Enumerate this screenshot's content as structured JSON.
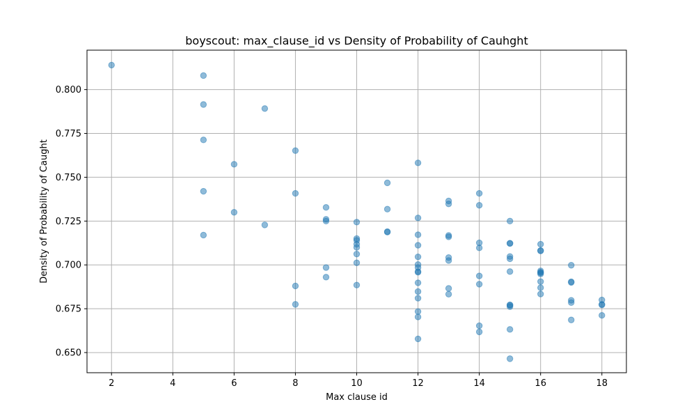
{
  "chart_data": {
    "type": "scatter",
    "title": "boyscout: max_clause_id vs Density of Probability of Cauhght",
    "xlabel": "Max clause id",
    "ylabel": "Density of Probability of Caught",
    "xlim": [
      1.2,
      18.8
    ],
    "ylim": [
      0.6385,
      0.8225
    ],
    "xticks": [
      2,
      4,
      6,
      8,
      10,
      12,
      14,
      16,
      18
    ],
    "xtick_labels": [
      "2",
      "4",
      "6",
      "8",
      "10",
      "12",
      "14",
      "16",
      "18"
    ],
    "yticks": [
      0.65,
      0.675,
      0.7,
      0.725,
      0.75,
      0.775,
      0.8
    ],
    "ytick_labels": [
      "0.650",
      "0.675",
      "0.700",
      "0.725",
      "0.750",
      "0.775",
      "0.800"
    ],
    "grid": true,
    "point_color": "#1f77b4",
    "point_alpha": 0.5,
    "points": [
      [
        2,
        0.814
      ],
      [
        5,
        0.808
      ],
      [
        5,
        0.7915
      ],
      [
        5,
        0.7713
      ],
      [
        5,
        0.742
      ],
      [
        5,
        0.717
      ],
      [
        6,
        0.7574
      ],
      [
        6,
        0.73
      ],
      [
        7,
        0.7892
      ],
      [
        7,
        0.7228
      ],
      [
        8,
        0.7652
      ],
      [
        8,
        0.7408
      ],
      [
        8,
        0.688
      ],
      [
        8,
        0.6775
      ],
      [
        9,
        0.7328
      ],
      [
        9,
        0.726
      ],
      [
        9,
        0.725
      ],
      [
        9,
        0.6985
      ],
      [
        9,
        0.693
      ],
      [
        10,
        0.7244
      ],
      [
        10,
        0.715
      ],
      [
        10,
        0.714
      ],
      [
        10,
        0.7118
      ],
      [
        10,
        0.71
      ],
      [
        10,
        0.7062
      ],
      [
        10,
        0.7012
      ],
      [
        10,
        0.6885
      ],
      [
        11,
        0.7468
      ],
      [
        11,
        0.7318
      ],
      [
        11,
        0.719
      ],
      [
        11,
        0.7187
      ],
      [
        12,
        0.7582
      ],
      [
        12,
        0.7268
      ],
      [
        12,
        0.7172
      ],
      [
        12,
        0.7112
      ],
      [
        12,
        0.7046
      ],
      [
        12,
        0.7002
      ],
      [
        12,
        0.6985
      ],
      [
        12,
        0.6962
      ],
      [
        12,
        0.6958
      ],
      [
        12,
        0.6898
      ],
      [
        12,
        0.6848
      ],
      [
        12,
        0.681
      ],
      [
        12,
        0.6734
      ],
      [
        12,
        0.6703
      ],
      [
        12,
        0.6578
      ],
      [
        13,
        0.7365
      ],
      [
        13,
        0.7348
      ],
      [
        13,
        0.7168
      ],
      [
        13,
        0.716
      ],
      [
        13,
        0.7042
      ],
      [
        13,
        0.7025
      ],
      [
        13,
        0.6866
      ],
      [
        13,
        0.6833
      ],
      [
        14,
        0.7408
      ],
      [
        14,
        0.734
      ],
      [
        14,
        0.7126
      ],
      [
        14,
        0.7097
      ],
      [
        14,
        0.6937
      ],
      [
        14,
        0.689
      ],
      [
        14,
        0.6653
      ],
      [
        14,
        0.6618
      ],
      [
        15,
        0.725
      ],
      [
        15,
        0.7124
      ],
      [
        15,
        0.7122
      ],
      [
        15,
        0.7048
      ],
      [
        15,
        0.7035
      ],
      [
        15,
        0.6962
      ],
      [
        15,
        0.6772
      ],
      [
        15,
        0.677
      ],
      [
        15,
        0.6762
      ],
      [
        15,
        0.6632
      ],
      [
        15,
        0.6465
      ],
      [
        16,
        0.7118
      ],
      [
        16,
        0.7082
      ],
      [
        16,
        0.708
      ],
      [
        16,
        0.6966
      ],
      [
        16,
        0.6958
      ],
      [
        16,
        0.6955
      ],
      [
        16,
        0.6948
      ],
      [
        16,
        0.6905
      ],
      [
        16,
        0.687
      ],
      [
        16,
        0.6834
      ],
      [
        17,
        0.6998
      ],
      [
        17,
        0.6904
      ],
      [
        17,
        0.69
      ],
      [
        17,
        0.6798
      ],
      [
        17,
        0.6785
      ],
      [
        17,
        0.6686
      ],
      [
        18,
        0.68
      ],
      [
        18,
        0.6775
      ],
      [
        18,
        0.6772
      ],
      [
        18,
        0.6712
      ]
    ]
  }
}
